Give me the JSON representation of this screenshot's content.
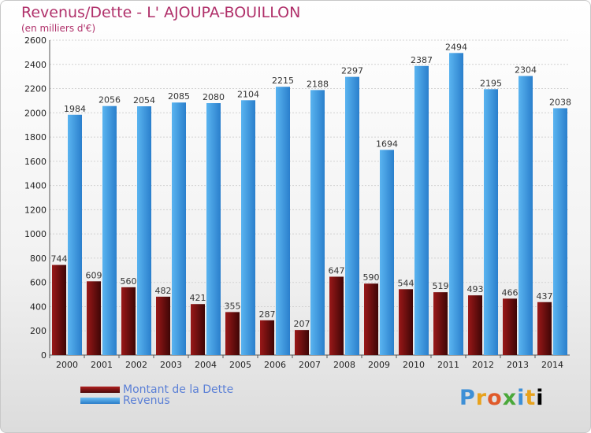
{
  "chart_data": {
    "type": "bar",
    "title": "Revenus/Dette - L' AJOUPA-BOUILLON",
    "subtitle": "(en milliers d'€)",
    "categories": [
      "2000",
      "2001",
      "2002",
      "2003",
      "2004",
      "2005",
      "2006",
      "2007",
      "2008",
      "2009",
      "2010",
      "2011",
      "2012",
      "2013",
      "2014"
    ],
    "series": [
      {
        "name": "Montant de la Dette",
        "color": "#7a1010",
        "values": [
          744,
          609,
          560,
          482,
          421,
          355,
          287,
          207,
          647,
          590,
          544,
          519,
          493,
          466,
          437
        ]
      },
      {
        "name": "Revenus",
        "color": "#4aa3e8",
        "values": [
          1984,
          2056,
          2054,
          2085,
          2080,
          2104,
          2215,
          2188,
          2297,
          1694,
          2387,
          2494,
          2195,
          2304,
          2038
        ]
      }
    ],
    "ylim": [
      0,
      2600
    ],
    "yticks": [
      0,
      200,
      400,
      600,
      800,
      1000,
      1200,
      1400,
      1600,
      1800,
      2000,
      2200,
      2400,
      2600
    ],
    "grid": true,
    "legend": "bottom-left"
  },
  "brand": {
    "letters": [
      "P",
      "r",
      "o",
      "x",
      "i",
      "t",
      "i"
    ]
  }
}
